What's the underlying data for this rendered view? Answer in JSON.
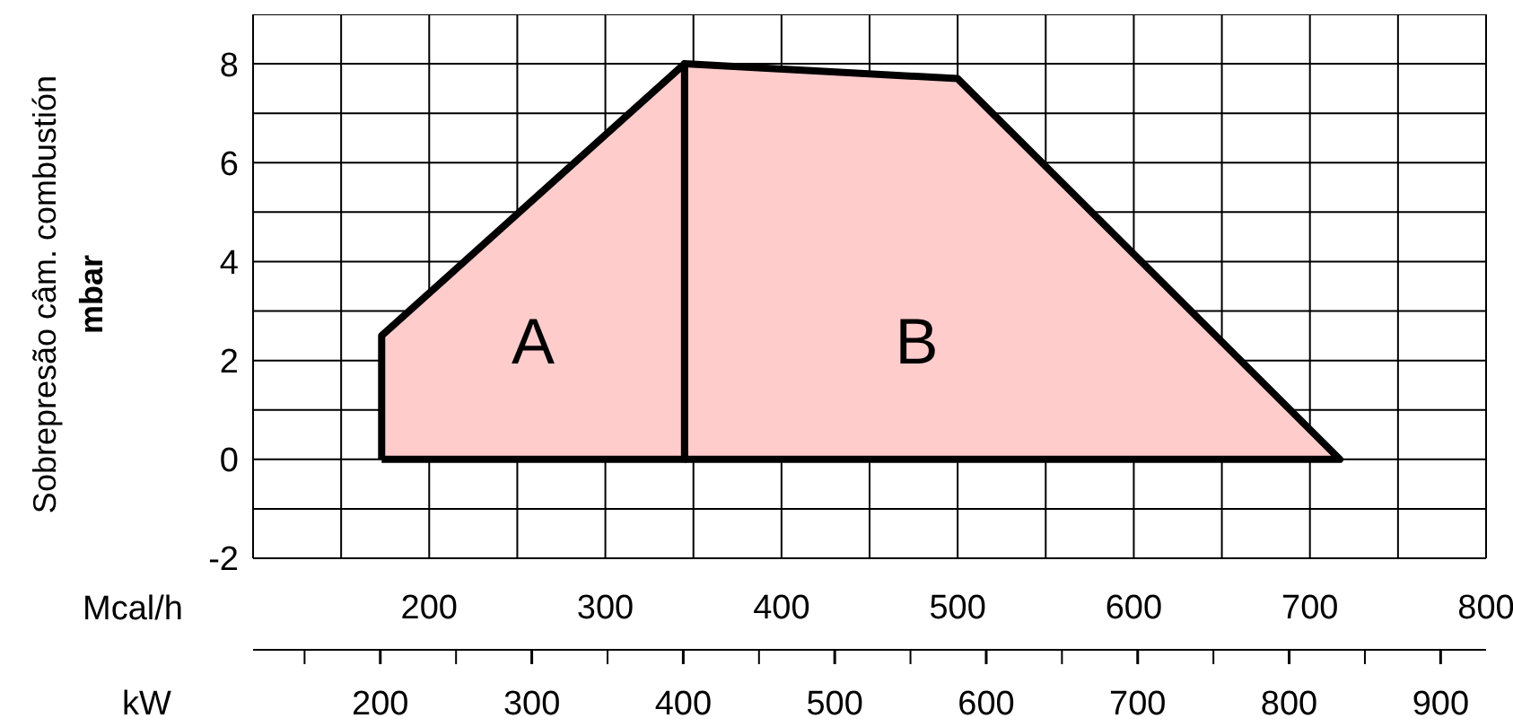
{
  "chart_data": {
    "type": "area",
    "ylabel": "Sobrepresão câm. combustión\nmbar",
    "xlabel": "Mcal/h",
    "x2label": "kW",
    "series": [
      {
        "color": "#ffcccc",
        "x": [
          173,
          173,
          345,
          345,
          173
        ],
        "values": [
          0,
          2.5,
          8,
          0,
          0
        ]
      },
      {
        "color": "#ffcccc",
        "x": [
          345,
          345,
          500,
          717,
          345
        ],
        "values": [
          0,
          8,
          7.7,
          0,
          0
        ]
      }
    ],
    "xlim": [
      100,
      800
    ],
    "xticks": [
      {
        "value": 100,
        "label": null
      },
      {
        "value": 150,
        "label": null
      },
      200,
      {
        "value": 250,
        "label": null
      },
      300,
      {
        "value": 350,
        "label": null
      },
      400,
      {
        "value": 450,
        "label": null
      },
      500,
      {
        "value": 550,
        "label": null
      },
      600,
      {
        "value": 650,
        "label": null
      },
      700,
      {
        "value": 750,
        "label": null
      },
      800
    ],
    "x2lim": [
      116,
      930
    ],
    "x2ticks": [
      200,
      300,
      400,
      500,
      600,
      700,
      800,
      900
    ],
    "ylim": [
      -2,
      9
    ],
    "yticks": [
      -2,
      {
        "value": -1,
        "label": null
      },
      0,
      {
        "value": 1,
        "label": null
      },
      2,
      {
        "value": 3,
        "label": null
      },
      4,
      {
        "value": 5,
        "label": null
      },
      6,
      {
        "value": 7,
        "label": null
      },
      8,
      {
        "value": 9,
        "label": null
      }
    ],
    "grid": true,
    "annotations": [
      "A",
      "B"
    ]
  }
}
